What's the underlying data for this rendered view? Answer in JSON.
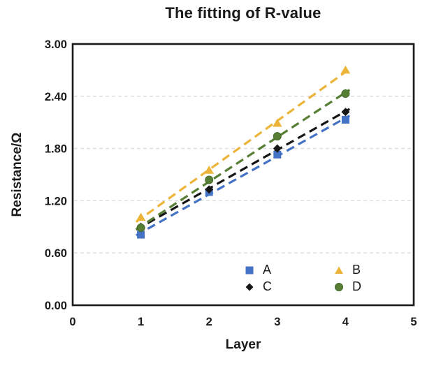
{
  "chart_data": {
    "type": "scatter",
    "title": "The fitting of R-value",
    "xlabel": "Layer",
    "ylabel": "Resistance/Ω",
    "xlim": [
      0,
      5
    ],
    "ylim": [
      0,
      3
    ],
    "x_ticks": [
      "0",
      "1",
      "2",
      "3",
      "4",
      "5"
    ],
    "y_ticks": [
      "0.00",
      "0.60",
      "1.20",
      "1.80",
      "2.40",
      "3.00"
    ],
    "gridlines": [
      0.6,
      1.2,
      1.8,
      2.4
    ],
    "grid_color": "#dcdcdc",
    "border_color": "#1a1a1a",
    "x": [
      1,
      2,
      3,
      4
    ],
    "line_style": "dashed",
    "fit": "linear",
    "legend_position": "inside-bottom-center",
    "series": [
      {
        "name": "A",
        "marker": "square",
        "color": "#4472C4",
        "values": [
          0.81,
          1.3,
          1.73,
          2.13
        ]
      },
      {
        "name": "B",
        "marker": "triangle",
        "color": "#ECB53A",
        "values": [
          1.01,
          1.55,
          2.09,
          2.7
        ]
      },
      {
        "name": "C",
        "marker": "diamond",
        "color": "#161616",
        "values": [
          0.9,
          1.33,
          1.8,
          2.22
        ]
      },
      {
        "name": "D",
        "marker": "circle",
        "color": "#567F35",
        "values": [
          0.89,
          1.44,
          1.94,
          2.43
        ]
      }
    ]
  }
}
